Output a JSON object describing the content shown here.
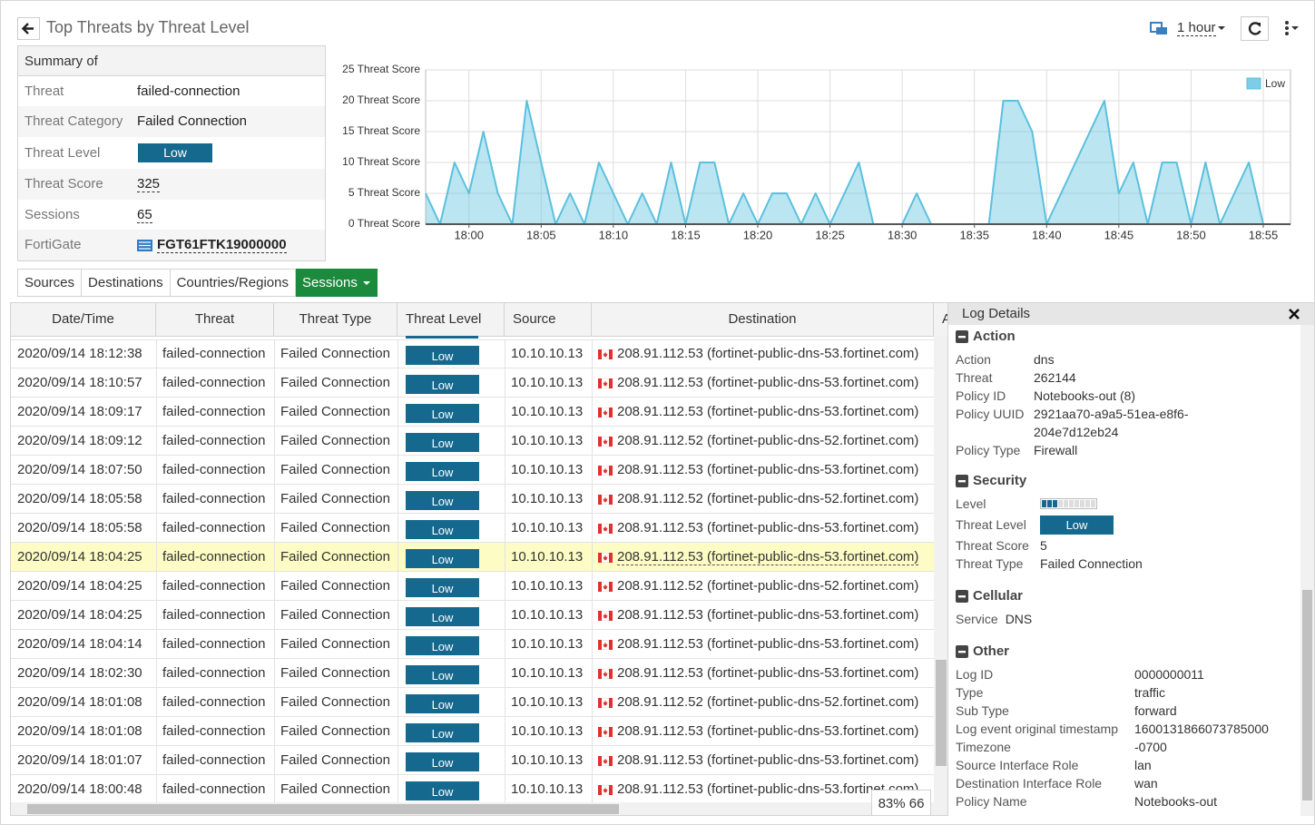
{
  "header": {
    "title": "Top Threats by Threat Level",
    "time_range": "1 hour"
  },
  "summary": {
    "title": "Summary of",
    "rows": [
      {
        "label": "Threat",
        "value": "failed-connection"
      },
      {
        "label": "Threat Category",
        "value": "Failed Connection"
      },
      {
        "label": "Threat Level",
        "value": "Low"
      },
      {
        "label": "Threat Score",
        "value": "325"
      },
      {
        "label": "Sessions",
        "value": "65"
      },
      {
        "label": "FortiGate",
        "value": "FGT61FTK19000000"
      }
    ]
  },
  "chart_data": {
    "type": "area",
    "categories": [
      null,
      null,
      null,
      "18:00",
      null,
      null,
      null,
      null,
      "18:05",
      null,
      null,
      null,
      null,
      "18:10",
      null,
      null,
      null,
      null,
      "18:15",
      null,
      null,
      null,
      null,
      "18:20",
      null,
      null,
      null,
      null,
      "18:25",
      null,
      null,
      null,
      null,
      "18:30",
      null,
      null,
      null,
      null,
      "18:35",
      null,
      null,
      null,
      null,
      "18:40",
      null,
      null,
      null,
      null,
      "18:45",
      null,
      null,
      null,
      null,
      "18:50",
      null,
      null,
      null,
      null,
      "18:55"
    ],
    "series": [
      {
        "name": "Low",
        "color": "#5bc0de",
        "values": [
          5,
          0,
          10,
          5,
          15,
          5,
          0,
          20,
          10,
          0,
          5,
          0,
          10,
          5,
          0,
          5,
          0,
          10,
          0,
          10,
          10,
          0,
          5,
          0,
          5,
          5,
          0,
          5,
          0,
          5,
          10,
          0,
          0,
          0,
          5,
          0,
          0,
          0,
          0,
          0,
          20,
          20,
          15,
          0,
          5,
          10,
          15,
          20,
          5,
          10,
          0,
          10,
          10,
          0,
          10,
          0,
          5,
          10,
          0
        ]
      }
    ],
    "ylim": [
      0,
      25
    ],
    "yticks": [
      {
        "value": 0,
        "label": "0 Threat Score"
      },
      {
        "value": 5,
        "label": "5 Threat Score"
      },
      {
        "value": 10,
        "label": "10 Threat Score"
      },
      {
        "value": 15,
        "label": "15 Threat Score"
      },
      {
        "value": 20,
        "label": "20 Threat Score"
      },
      {
        "value": 25,
        "label": "25 Threat Score"
      }
    ],
    "grid": true,
    "legend": "top-right"
  },
  "tabs": [
    "Sources",
    "Destinations",
    "Countries/Regions",
    "Sessions"
  ],
  "table": {
    "columns": [
      "Date/Time",
      "Threat",
      "Threat Type",
      "Threat Level",
      "Source",
      "Destination",
      "A"
    ],
    "rows": [
      [
        "2020/09/14 18:12:38",
        "failed-connection",
        "Failed Connection",
        "Low",
        "10.10.10.13",
        "208.91.112.53 (fortinet-public-dns-53.fortinet.com)"
      ],
      [
        "2020/09/14 18:10:57",
        "failed-connection",
        "Failed Connection",
        "Low",
        "10.10.10.13",
        "208.91.112.53 (fortinet-public-dns-53.fortinet.com)"
      ],
      [
        "2020/09/14 18:09:17",
        "failed-connection",
        "Failed Connection",
        "Low",
        "10.10.10.13",
        "208.91.112.53 (fortinet-public-dns-53.fortinet.com)"
      ],
      [
        "2020/09/14 18:09:12",
        "failed-connection",
        "Failed Connection",
        "Low",
        "10.10.10.13",
        "208.91.112.52 (fortinet-public-dns-52.fortinet.com)"
      ],
      [
        "2020/09/14 18:07:50",
        "failed-connection",
        "Failed Connection",
        "Low",
        "10.10.10.13",
        "208.91.112.53 (fortinet-public-dns-53.fortinet.com)"
      ],
      [
        "2020/09/14 18:05:58",
        "failed-connection",
        "Failed Connection",
        "Low",
        "10.10.10.13",
        "208.91.112.52 (fortinet-public-dns-52.fortinet.com)"
      ],
      [
        "2020/09/14 18:05:58",
        "failed-connection",
        "Failed Connection",
        "Low",
        "10.10.10.13",
        "208.91.112.53 (fortinet-public-dns-53.fortinet.com)"
      ],
      [
        "2020/09/14 18:04:25",
        "failed-connection",
        "Failed Connection",
        "Low",
        "10.10.10.13",
        "208.91.112.53 (fortinet-public-dns-53.fortinet.com)"
      ],
      [
        "2020/09/14 18:04:25",
        "failed-connection",
        "Failed Connection",
        "Low",
        "10.10.10.13",
        "208.91.112.52 (fortinet-public-dns-52.fortinet.com)"
      ],
      [
        "2020/09/14 18:04:25",
        "failed-connection",
        "Failed Connection",
        "Low",
        "10.10.10.13",
        "208.91.112.53 (fortinet-public-dns-53.fortinet.com)"
      ],
      [
        "2020/09/14 18:04:14",
        "failed-connection",
        "Failed Connection",
        "Low",
        "10.10.10.13",
        "208.91.112.53 (fortinet-public-dns-53.fortinet.com)"
      ],
      [
        "2020/09/14 18:02:30",
        "failed-connection",
        "Failed Connection",
        "Low",
        "10.10.10.13",
        "208.91.112.53 (fortinet-public-dns-53.fortinet.com)"
      ],
      [
        "2020/09/14 18:01:08",
        "failed-connection",
        "Failed Connection",
        "Low",
        "10.10.10.13",
        "208.91.112.52 (fortinet-public-dns-52.fortinet.com)"
      ],
      [
        "2020/09/14 18:01:08",
        "failed-connection",
        "Failed Connection",
        "Low",
        "10.10.10.13",
        "208.91.112.53 (fortinet-public-dns-53.fortinet.com)"
      ],
      [
        "2020/09/14 18:01:07",
        "failed-connection",
        "Failed Connection",
        "Low",
        "10.10.10.13",
        "208.91.112.53 (fortinet-public-dns-53.fortinet.com)"
      ],
      [
        "2020/09/14 18:00:48",
        "failed-connection",
        "Failed Connection",
        "Low",
        "10.10.10.13",
        "208.91.112.53 (fortinet-public-dns-53.fortinet.com)"
      ]
    ]
  },
  "log_details": {
    "title": "Log Details",
    "sections": [
      {
        "title": "Action",
        "fields": [
          {
            "label": "Action",
            "value": "dns"
          },
          {
            "label": "Threat",
            "value": "262144"
          },
          {
            "label": "Policy ID",
            "value": "Notebooks-out (8)"
          },
          {
            "label": "Policy UUID",
            "value": "2921aa70-a9a5-51ea-e8f6-204e7d12eb24"
          },
          {
            "label": "Policy Type",
            "value": "Firewall"
          }
        ]
      },
      {
        "title": "Security",
        "fields": [
          {
            "label": "Level"
          },
          {
            "label": "Threat Level",
            "value": "Low"
          },
          {
            "label": "Threat Score",
            "value": "5"
          },
          {
            "label": "Threat Type",
            "value": "Failed Connection"
          }
        ]
      },
      {
        "title": "Cellular",
        "fields": [
          {
            "label": "Service",
            "value": "DNS"
          }
        ]
      },
      {
        "title": "Other",
        "fields": [
          {
            "label": "Log ID",
            "value": "0000000011"
          },
          {
            "label": "Type",
            "value": "traffic"
          },
          {
            "label": "Sub Type",
            "value": "forward"
          },
          {
            "label": "Log event original timestamp",
            "value": "1600131866073785000"
          },
          {
            "label": "Timezone",
            "value": "-0700"
          },
          {
            "label": "Source Interface Role",
            "value": "lan"
          },
          {
            "label": "Destination Interface Role",
            "value": "wan"
          },
          {
            "label": "Policy Name",
            "value": "Notebooks-out"
          }
        ]
      }
    ]
  },
  "status": "83% 66"
}
